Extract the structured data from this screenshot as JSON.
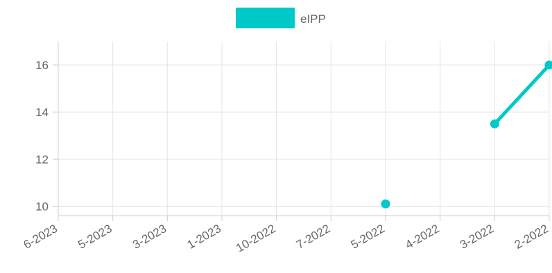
{
  "chart_data": {
    "type": "line",
    "categories": [
      "6-2023",
      "5-2023",
      "3-2023",
      "1-2023",
      "10-2022",
      "7-2022",
      "5-2022",
      "4-2022",
      "3-2022",
      "2-2022"
    ],
    "series": [
      {
        "name": "eIPP",
        "values": [
          null,
          null,
          null,
          null,
          null,
          null,
          10.1,
          null,
          13.5,
          16.0
        ],
        "color": "#00c9c9"
      }
    ],
    "ylim": [
      9.6,
      17
    ],
    "yticks": [
      10,
      12,
      14,
      16
    ],
    "grid": true,
    "legend_position": "top-center"
  }
}
